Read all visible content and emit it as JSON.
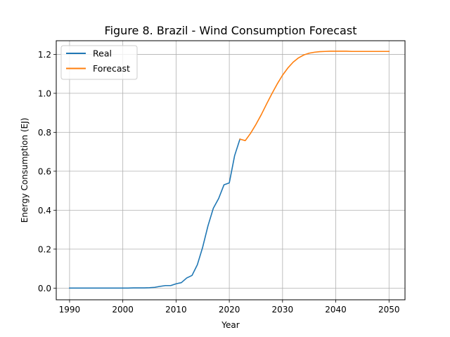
{
  "chart_data": {
    "type": "line",
    "title": "Figure 8. Brazil - Wind Consumption Forecast",
    "xlabel": "Year",
    "ylabel": "Energy Consumption (EJ)",
    "xlim": [
      1987.5,
      2053.0
    ],
    "ylim": [
      -0.06,
      1.27
    ],
    "xticks": [
      1990,
      2000,
      2010,
      2020,
      2030,
      2040,
      2050
    ],
    "yticks": [
      0.0,
      0.2,
      0.4,
      0.6,
      0.8,
      1.0,
      1.2
    ],
    "grid": true,
    "legend_position": "top-left",
    "series": [
      {
        "name": "Real",
        "color": "#1f77b4",
        "x": [
          1990,
          1991,
          1992,
          1993,
          1994,
          1995,
          1996,
          1997,
          1998,
          1999,
          2000,
          2001,
          2002,
          2003,
          2004,
          2005,
          2006,
          2007,
          2008,
          2009,
          2010,
          2011,
          2012,
          2013,
          2014,
          2015,
          2016,
          2017,
          2018,
          2019,
          2020,
          2021,
          2022
        ],
        "y": [
          0.0,
          0.0,
          0.0,
          0.0,
          0.0,
          0.0,
          0.0,
          0.0,
          0.0,
          0.0,
          0.0,
          0.0,
          0.001,
          0.001,
          0.001,
          0.002,
          0.004,
          0.009,
          0.013,
          0.013,
          0.022,
          0.028,
          0.052,
          0.065,
          0.12,
          0.21,
          0.32,
          0.41,
          0.46,
          0.53,
          0.54,
          0.68,
          0.765
        ]
      },
      {
        "name": "Forecast",
        "color": "#ff7f0e",
        "x": [
          2022,
          2023,
          2024,
          2025,
          2026,
          2027,
          2028,
          2029,
          2030,
          2031,
          2032,
          2033,
          2034,
          2035,
          2036,
          2037,
          2038,
          2039,
          2040,
          2041,
          2042,
          2043,
          2044,
          2045,
          2046,
          2047,
          2048,
          2049,
          2050
        ],
        "y": [
          0.765,
          0.757,
          0.795,
          0.84,
          0.89,
          0.945,
          0.998,
          1.048,
          1.093,
          1.13,
          1.16,
          1.182,
          1.197,
          1.206,
          1.211,
          1.214,
          1.215,
          1.216,
          1.216,
          1.216,
          1.216,
          1.215,
          1.215,
          1.215,
          1.215,
          1.215,
          1.215,
          1.215,
          1.215
        ]
      }
    ]
  }
}
